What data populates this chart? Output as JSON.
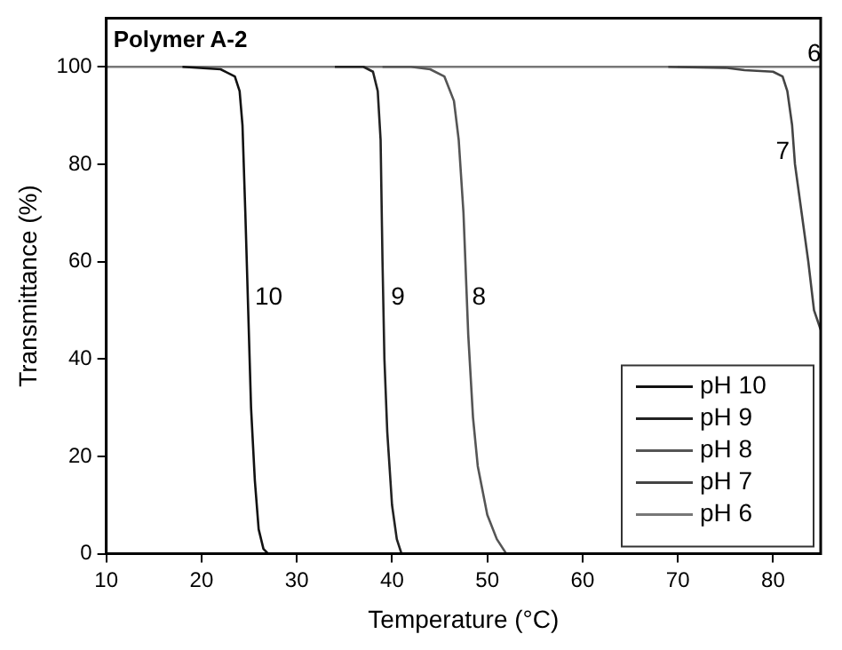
{
  "chart_data": {
    "type": "line",
    "title": "Polymer A-2",
    "xlabel": "Temperature (°C)",
    "ylabel": "Transmittance (%)",
    "xlim": [
      10,
      85
    ],
    "ylim": [
      0,
      110
    ],
    "xticks": [
      10,
      20,
      30,
      40,
      50,
      60,
      70,
      80
    ],
    "yticks": [
      0,
      20,
      40,
      60,
      80,
      100
    ],
    "grid": false,
    "legend": "bottom right",
    "marker": "none",
    "line_style": "solid",
    "series": [
      {
        "name": "pH 10",
        "color": "#111111",
        "x": [
          18,
          22,
          23.5,
          24,
          24.3,
          24.6,
          24.9,
          25.2,
          25.6,
          26,
          26.5,
          27
        ],
        "values": [
          100,
          99.5,
          98,
          95,
          88,
          70,
          50,
          30,
          15,
          5,
          1,
          0
        ]
      },
      {
        "name": "pH 9",
        "color": "#222222",
        "x": [
          34,
          37,
          38,
          38.5,
          38.8,
          39,
          39.2,
          39.5,
          40,
          40.5,
          41
        ],
        "values": [
          100,
          100,
          99,
          95,
          85,
          60,
          40,
          25,
          10,
          3,
          0
        ]
      },
      {
        "name": "pH 8",
        "color": "#555555",
        "x": [
          39,
          42,
          44,
          45.5,
          46.5,
          47,
          47.5,
          47.8,
          48,
          48.5,
          49,
          50,
          51,
          52
        ],
        "values": [
          100,
          100,
          99.5,
          98,
          93,
          85,
          70,
          55,
          45,
          28,
          18,
          8,
          3,
          0
        ]
      },
      {
        "name": "pH 7",
        "color": "#444444",
        "x": [
          69,
          75,
          77,
          80,
          81,
          81.5,
          82,
          82.3,
          83,
          83.7,
          84.3,
          85
        ],
        "values": [
          100,
          99.8,
          99.3,
          99,
          98,
          95,
          88,
          80,
          70,
          60,
          50,
          46
        ]
      },
      {
        "name": "pH 6",
        "color": "#777777",
        "x": [
          10,
          85
        ],
        "values": [
          100,
          100
        ]
      }
    ],
    "annotations": [
      {
        "text": "10",
        "x": 25.6,
        "y": 50
      },
      {
        "text": "9",
        "x": 39.9,
        "y": 50
      },
      {
        "text": "8",
        "x": 48.4,
        "y": 50
      },
      {
        "text": "7",
        "x": 82.3,
        "y": 80
      },
      {
        "text": "6",
        "x": 83.6,
        "y": 100
      }
    ]
  }
}
